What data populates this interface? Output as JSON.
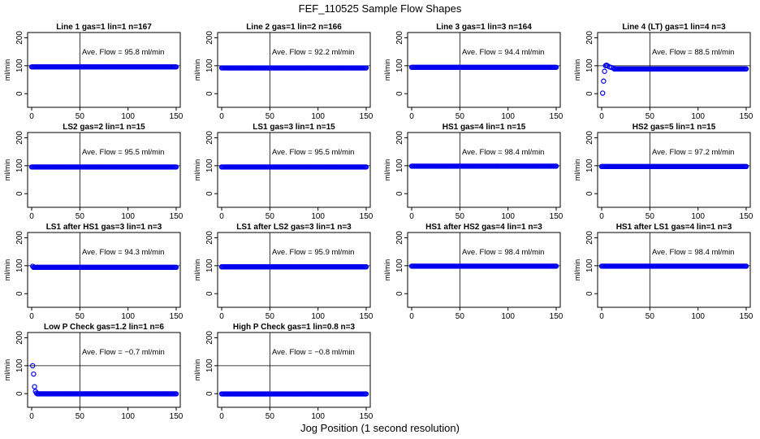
{
  "title": "FEF_110525  Sample Flow Shapes",
  "xlabel": "Jog Position (1 second resolution)",
  "colors": {
    "points": "#0000ee",
    "axes": "#000000",
    "background": "#ffffff"
  },
  "chart_data": [
    {
      "type": "scatter",
      "title": "Line 1 gas=1 lin=1 n=167",
      "ylabel": "ml/min",
      "xlim": [
        0,
        150
      ],
      "ylim": [
        -40,
        210
      ],
      "xticks": [
        0,
        50,
        100,
        150
      ],
      "yticks": [
        0,
        100,
        200
      ],
      "refline_y": 100,
      "vline_x": 50,
      "annotation": "Ave. Flow = 95.8  ml/min",
      "level": 95.8,
      "startup": []
    },
    {
      "type": "scatter",
      "title": "Line 2 gas=1 lin=2 n=166",
      "ylabel": "ml/min",
      "xlim": [
        0,
        150
      ],
      "ylim": [
        -40,
        210
      ],
      "xticks": [
        0,
        50,
        100,
        150
      ],
      "yticks": [
        0,
        100,
        200
      ],
      "refline_y": 100,
      "vline_x": 50,
      "annotation": "Ave. Flow = 92.2  ml/min",
      "level": 92.2,
      "startup": []
    },
    {
      "type": "scatter",
      "title": "Line 3 gas=1 lin=3 n=164",
      "ylabel": "ml/min",
      "xlim": [
        0,
        150
      ],
      "ylim": [
        -40,
        210
      ],
      "xticks": [
        0,
        50,
        100,
        150
      ],
      "yticks": [
        0,
        100,
        200
      ],
      "refline_y": 100,
      "vline_x": 50,
      "annotation": "Ave. Flow = 94.4  ml/min",
      "level": 94.4,
      "startup": []
    },
    {
      "type": "scatter",
      "title": "Line 4 (LT) gas=1 lin=4 n=3",
      "ylabel": "ml/min",
      "xlim": [
        0,
        150
      ],
      "ylim": [
        -40,
        210
      ],
      "xticks": [
        0,
        50,
        100,
        150
      ],
      "yticks": [
        0,
        100,
        200
      ],
      "refline_y": 100,
      "vline_x": 50,
      "annotation": "Ave. Flow = 88.5  ml/min",
      "level": 88.5,
      "startup": [
        [
          1,
          2
        ],
        [
          2,
          45
        ],
        [
          3,
          80
        ],
        [
          4,
          100
        ],
        [
          5,
          102
        ],
        [
          6,
          100
        ],
        [
          8,
          96
        ],
        [
          10,
          94
        ],
        [
          12,
          92
        ]
      ]
    },
    {
      "type": "scatter",
      "title": "LS2 gas=2 lin=1 n=15",
      "ylabel": "ml/min",
      "xlim": [
        0,
        150
      ],
      "ylim": [
        -40,
        210
      ],
      "xticks": [
        0,
        50,
        100,
        150
      ],
      "yticks": [
        0,
        100,
        200
      ],
      "refline_y": 100,
      "vline_x": 50,
      "annotation": "Ave. Flow = 95.5  ml/min",
      "level": 95.5,
      "startup": []
    },
    {
      "type": "scatter",
      "title": "LS1 gas=3 lin=1 n=15",
      "ylabel": "ml/min",
      "xlim": [
        0,
        150
      ],
      "ylim": [
        -40,
        210
      ],
      "xticks": [
        0,
        50,
        100,
        150
      ],
      "yticks": [
        0,
        100,
        200
      ],
      "refline_y": 100,
      "vline_x": 50,
      "annotation": "Ave. Flow = 95.5  ml/min",
      "level": 95.5,
      "startup": []
    },
    {
      "type": "scatter",
      "title": "HS1 gas=4 lin=1 n=15",
      "ylabel": "ml/min",
      "xlim": [
        0,
        150
      ],
      "ylim": [
        -40,
        210
      ],
      "xticks": [
        0,
        50,
        100,
        150
      ],
      "yticks": [
        0,
        100,
        200
      ],
      "refline_y": 100,
      "vline_x": 50,
      "annotation": "Ave. Flow = 98.4  ml/min",
      "level": 98.4,
      "startup": []
    },
    {
      "type": "scatter",
      "title": "HS2 gas=5 lin=1 n=15",
      "ylabel": "ml/min",
      "xlim": [
        0,
        150
      ],
      "ylim": [
        -40,
        210
      ],
      "xticks": [
        0,
        50,
        100,
        150
      ],
      "yticks": [
        0,
        100,
        200
      ],
      "refline_y": 100,
      "vline_x": 50,
      "annotation": "Ave. Flow = 97.2  ml/min",
      "level": 97.2,
      "startup": []
    },
    {
      "type": "scatter",
      "title": "LS1 after HS1 gas=3 lin=1 n=3",
      "ylabel": "ml/min",
      "xlim": [
        0,
        150
      ],
      "ylim": [
        -40,
        210
      ],
      "xticks": [
        0,
        50,
        100,
        150
      ],
      "yticks": [
        0,
        100,
        200
      ],
      "refline_y": 100,
      "vline_x": 50,
      "annotation": "Ave. Flow = 94.3  ml/min",
      "level": 94.3,
      "startup": [
        [
          1,
          98
        ]
      ]
    },
    {
      "type": "scatter",
      "title": "LS1 after LS2 gas=3 lin=1 n=3",
      "ylabel": "ml/min",
      "xlim": [
        0,
        150
      ],
      "ylim": [
        -40,
        210
      ],
      "xticks": [
        0,
        50,
        100,
        150
      ],
      "yticks": [
        0,
        100,
        200
      ],
      "refline_y": 100,
      "vline_x": 50,
      "annotation": "Ave. Flow = 95.9  ml/min",
      "level": 95.9,
      "startup": []
    },
    {
      "type": "scatter",
      "title": "HS1 after HS2 gas=4 lin=1 n=3",
      "ylabel": "ml/min",
      "xlim": [
        0,
        150
      ],
      "ylim": [
        -40,
        210
      ],
      "xticks": [
        0,
        50,
        100,
        150
      ],
      "yticks": [
        0,
        100,
        200
      ],
      "refline_y": 100,
      "vline_x": 50,
      "annotation": "Ave. Flow = 98.4  ml/min",
      "level": 98.4,
      "startup": []
    },
    {
      "type": "scatter",
      "title": "HS1 after LS1 gas=4 lin=1 n=3",
      "ylabel": "ml/min",
      "xlim": [
        0,
        150
      ],
      "ylim": [
        -40,
        210
      ],
      "xticks": [
        0,
        50,
        100,
        150
      ],
      "yticks": [
        0,
        100,
        200
      ],
      "refline_y": 100,
      "vline_x": 50,
      "annotation": "Ave. Flow = 98.4  ml/min",
      "level": 98.4,
      "startup": []
    },
    {
      "type": "scatter",
      "title": "Low P Check gas=1.2 lin=1 n=6",
      "ylabel": "ml/min",
      "xlim": [
        0,
        150
      ],
      "ylim": [
        -40,
        210
      ],
      "xticks": [
        0,
        50,
        100,
        150
      ],
      "yticks": [
        0,
        100,
        200
      ],
      "refline_y": 100,
      "vline_x": 50,
      "annotation": "Ave. Flow = −0.7  ml/min",
      "level": -0.7,
      "startup": [
        [
          1,
          100
        ],
        [
          2,
          70
        ],
        [
          3,
          25
        ],
        [
          4,
          8
        ],
        [
          5,
          2
        ]
      ]
    },
    {
      "type": "scatter",
      "title": "High P Check gas=1 lin=0.8 n=3",
      "ylabel": "ml/min",
      "xlim": [
        0,
        150
      ],
      "ylim": [
        -40,
        210
      ],
      "xticks": [
        0,
        50,
        100,
        150
      ],
      "yticks": [
        0,
        100,
        200
      ],
      "refline_y": 100,
      "vline_x": 50,
      "annotation": "Ave. Flow = −0.8  ml/min",
      "level": -0.8,
      "startup": []
    }
  ]
}
